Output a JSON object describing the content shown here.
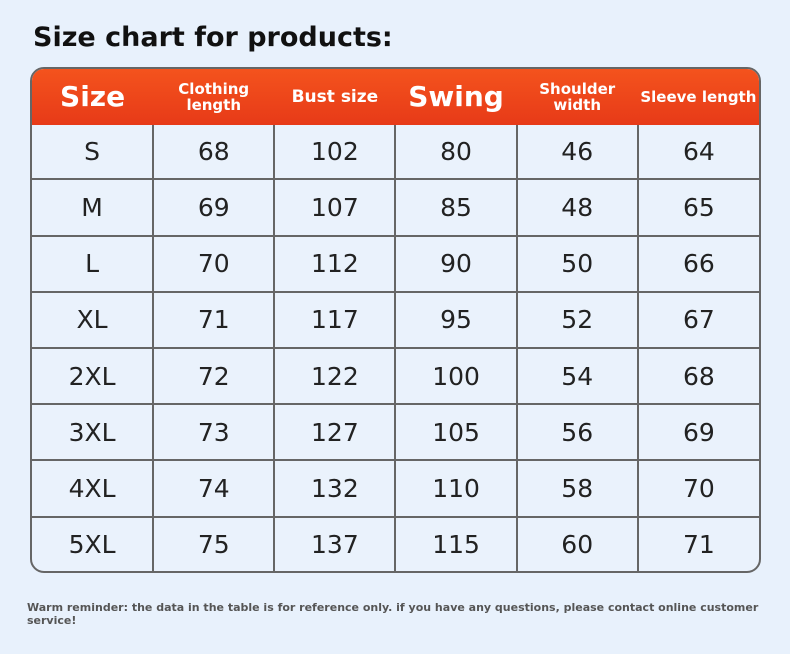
{
  "title": "Size chart for products:",
  "table": {
    "headers": [
      "Size",
      "Clothing length",
      "Bust size",
      "Swing",
      "Shoulder width",
      "Sleeve length"
    ],
    "rows": [
      [
        "S",
        "68",
        "102",
        "80",
        "46",
        "64"
      ],
      [
        "M",
        "69",
        "107",
        "85",
        "48",
        "65"
      ],
      [
        "L",
        "70",
        "112",
        "90",
        "50",
        "66"
      ],
      [
        "XL",
        "71",
        "117",
        "95",
        "52",
        "67"
      ],
      [
        "2XL",
        "72",
        "122",
        "100",
        "54",
        "68"
      ],
      [
        "3XL",
        "73",
        "127",
        "105",
        "56",
        "69"
      ],
      [
        "4XL",
        "74",
        "132",
        "110",
        "58",
        "70"
      ],
      [
        "5XL",
        "75",
        "137",
        "115",
        "60",
        "71"
      ]
    ]
  },
  "note": "Warm reminder: the data in the table is for reference only. if you have any questions, please contact online customer service!"
}
